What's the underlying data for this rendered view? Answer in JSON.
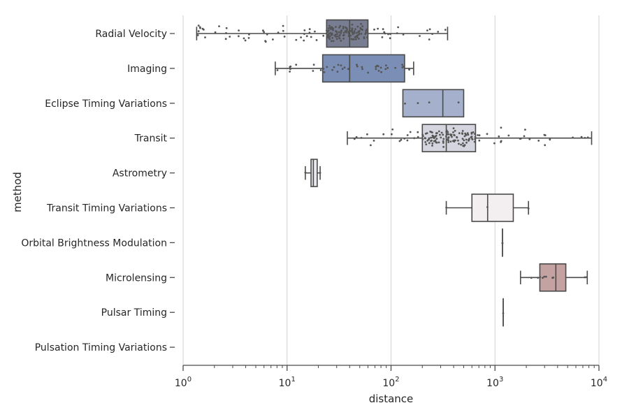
{
  "chart_data": {
    "type": "boxplot",
    "scale": "log",
    "xlabel": "distance",
    "ylabel": "method",
    "xlim": [
      1,
      10000
    ],
    "x_ticks": [
      {
        "value": 1,
        "base": "10",
        "exp": "0"
      },
      {
        "value": 10,
        "base": "10",
        "exp": "1"
      },
      {
        "value": 100,
        "base": "10",
        "exp": "2"
      },
      {
        "value": 1000,
        "base": "10",
        "exp": "3"
      },
      {
        "value": 10000,
        "base": "10",
        "exp": "4"
      }
    ],
    "grid": "vertical major",
    "categories": [
      "Radial Velocity",
      "Imaging",
      "Eclipse Timing Variations",
      "Transit",
      "Astrometry",
      "Transit Timing Variations",
      "Orbital Brightness Modulation",
      "Microlensing",
      "Pulsar Timing",
      "Pulsation Timing Variations"
    ],
    "series": [
      {
        "name": "Radial Velocity",
        "color": "#787d91",
        "whisker_low": 1.35,
        "q1": 24,
        "median": 40,
        "q3": 60,
        "whisker_high": 350,
        "points_count": 180
      },
      {
        "name": "Imaging",
        "color": "#7b8fb6",
        "whisker_low": 7.7,
        "q1": 22,
        "median": 40,
        "q3": 135,
        "whisker_high": 165,
        "points_count": 40
      },
      {
        "name": "Eclipse Timing Variations",
        "color": "#a5b1cc",
        "whisker_low": 130,
        "q1": 130,
        "median": 315,
        "q3": 500,
        "whisker_high": 500,
        "points_count": 4
      },
      {
        "name": "Transit",
        "color": "#d4d5df",
        "whisker_low": 38,
        "q1": 200,
        "median": 340,
        "q3": 650,
        "whisker_high": 8500,
        "points_count": 150
      },
      {
        "name": "Astrometry",
        "color": "#e8e8ef",
        "whisker_low": 14.98,
        "q1": 17,
        "median": 17.9,
        "q3": 19.5,
        "whisker_high": 20.8,
        "points_count": 2
      },
      {
        "name": "Transit Timing Variations",
        "color": "#f3eff1",
        "whisker_low": 340,
        "q1": 600,
        "median": 850,
        "q3": 1500,
        "whisker_high": 2100,
        "points_count": 3
      },
      {
        "name": "Orbital Brightness Modulation",
        "color": "#eadbdc",
        "whisker_low": 1180,
        "q1": 1180,
        "median": 1180,
        "q3": 1180,
        "whisker_high": 1180,
        "points_count": 2
      },
      {
        "name": "Microlensing",
        "color": "#c4a2a2",
        "whisker_low": 1760,
        "q1": 2700,
        "median": 3850,
        "q3": 4800,
        "whisker_high": 7720,
        "points_count": 10
      },
      {
        "name": "Pulsar Timing",
        "color": "#c9a8a8",
        "whisker_low": 1200,
        "q1": 1200,
        "median": 1200,
        "q3": 1200,
        "whisker_high": 1200,
        "points_count": 1
      },
      {
        "name": "Pulsation Timing Variations",
        "color": "#b58d8d",
        "whisker_low": null,
        "q1": null,
        "median": null,
        "q3": null,
        "whisker_high": null,
        "points_count": 0
      }
    ]
  }
}
